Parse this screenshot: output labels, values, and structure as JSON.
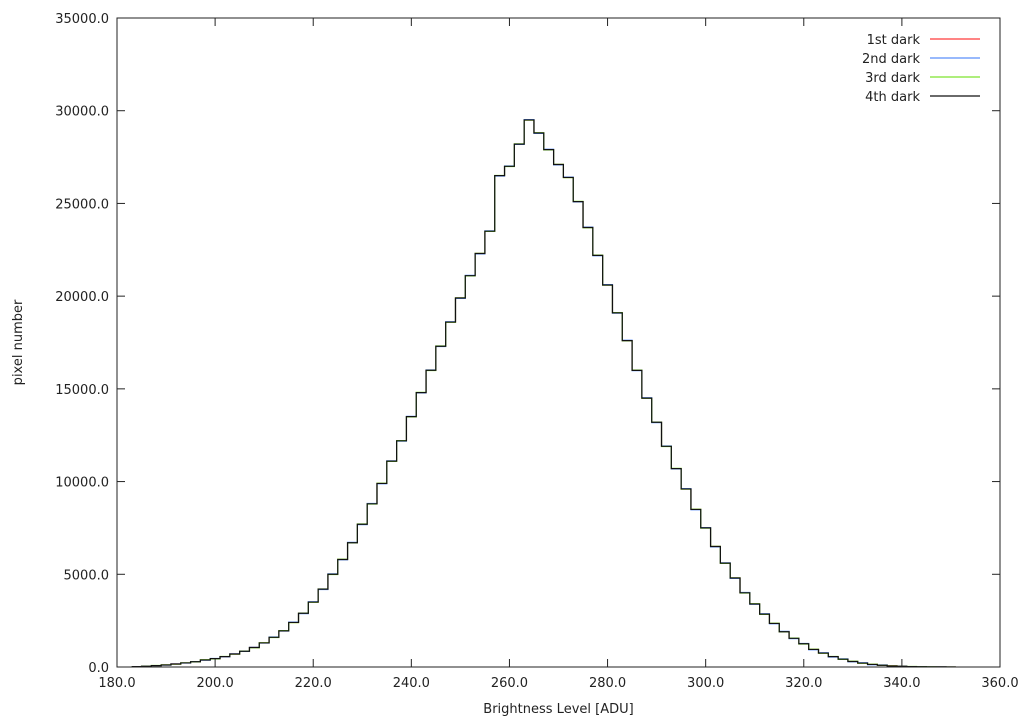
{
  "chart_data": {
    "type": "line",
    "style": "step",
    "title": "",
    "xlabel": "Brightness Level [ADU]",
    "ylabel": "pixel number",
    "xlim": [
      180,
      360
    ],
    "ylim": [
      0,
      35000
    ],
    "x_ticks": [
      {
        "v": 180,
        "label": "180.0"
      },
      {
        "v": 200,
        "label": "200.0"
      },
      {
        "v": 220,
        "label": "220.0"
      },
      {
        "v": 240,
        "label": "240.0"
      },
      {
        "v": 260,
        "label": "260.0"
      },
      {
        "v": 280,
        "label": "280.0"
      },
      {
        "v": 300,
        "label": "300.0"
      },
      {
        "v": 320,
        "label": "320.0"
      },
      {
        "v": 340,
        "label": "340.0"
      },
      {
        "v": 360,
        "label": "360.0"
      }
    ],
    "y_ticks": [
      {
        "v": 0,
        "label": "0.0"
      },
      {
        "v": 5000,
        "label": "5000.0"
      },
      {
        "v": 10000,
        "label": "10000.0"
      },
      {
        "v": 15000,
        "label": "15000.0"
      },
      {
        "v": 20000,
        "label": "20000.0"
      },
      {
        "v": 25000,
        "label": "25000.0"
      },
      {
        "v": 30000,
        "label": "30000.0"
      },
      {
        "v": 35000,
        "label": "35000.0"
      }
    ],
    "grid": false,
    "legend_position": "top-right",
    "x": [
      184,
      186,
      188,
      190,
      192,
      194,
      196,
      198,
      200,
      202,
      204,
      206,
      208,
      210,
      212,
      214,
      216,
      218,
      220,
      222,
      224,
      226,
      228,
      230,
      232,
      234,
      236,
      238,
      240,
      242,
      244,
      246,
      248,
      250,
      252,
      254,
      256,
      258,
      260,
      262,
      264,
      266,
      268,
      270,
      272,
      274,
      276,
      278,
      280,
      282,
      284,
      286,
      288,
      290,
      292,
      294,
      296,
      298,
      300,
      302,
      304,
      306,
      308,
      310,
      312,
      314,
      316,
      318,
      320,
      322,
      324,
      326,
      328,
      330,
      332,
      334,
      336,
      338,
      340,
      342,
      344,
      346,
      348,
      350
    ],
    "series": [
      {
        "name": "1st dark",
        "color": "#ff3b3b",
        "values": [
          20,
          40,
          70,
          110,
          160,
          220,
          280,
          380,
          450,
          560,
          700,
          850,
          1050,
          1300,
          1600,
          1950,
          2400,
          2900,
          3500,
          4200,
          5000,
          5800,
          6700,
          7700,
          8800,
          9900,
          11100,
          12200,
          13500,
          14800,
          16000,
          17300,
          18600,
          19900,
          21100,
          22300,
          23500,
          26500,
          27000,
          28200,
          29500,
          28800,
          27900,
          27100,
          26400,
          25100,
          23700,
          22200,
          20600,
          19100,
          17600,
          16000,
          14500,
          13200,
          11900,
          10700,
          9600,
          8500,
          7500,
          6500,
          5600,
          4800,
          4000,
          3400,
          2850,
          2350,
          1900,
          1550,
          1250,
          950,
          750,
          560,
          420,
          300,
          210,
          140,
          95,
          60,
          40,
          25,
          15,
          10,
          5,
          3
        ]
      },
      {
        "name": "2nd dark",
        "color": "#5b8ff9",
        "values": [
          20,
          45,
          75,
          105,
          165,
          215,
          290,
          370,
          460,
          550,
          710,
          840,
          1060,
          1290,
          1620,
          1940,
          2420,
          2880,
          3520,
          4180,
          5020,
          5780,
          6720,
          7680,
          8820,
          9880,
          11120,
          12180,
          13520,
          14780,
          16020,
          17280,
          18620,
          19880,
          21120,
          22280,
          23520,
          26480,
          27020,
          28180,
          29520,
          28780,
          27920,
          27080,
          26420,
          25080,
          23720,
          22180,
          20620,
          19080,
          17620,
          15980,
          14520,
          13180,
          11920,
          10680,
          9620,
          8480,
          7520,
          6480,
          5620,
          4780,
          4020,
          3380,
          2870,
          2330,
          1920,
          1530,
          1270,
          930,
          770,
          540,
          440,
          280,
          230,
          120,
          110,
          50,
          45,
          20,
          18,
          8,
          6,
          2
        ]
      },
      {
        "name": "3rd dark",
        "color": "#7ee32d",
        "values": [
          25,
          40,
          80,
          115,
          155,
          225,
          275,
          390,
          440,
          570,
          690,
          860,
          1040,
          1310,
          1590,
          1960,
          2390,
          2910,
          3490,
          4210,
          4990,
          5810,
          6690,
          7710,
          8790,
          9910,
          11090,
          12210,
          13490,
          14810,
          15990,
          17310,
          18590,
          19910,
          21090,
          22310,
          23490,
          26510,
          26990,
          28210,
          29490,
          28810,
          27890,
          27110,
          26390,
          25110,
          23690,
          22210,
          20590,
          19110,
          17590,
          16010,
          14490,
          13210,
          11890,
          10710,
          9590,
          8510,
          7490,
          6510,
          5590,
          4810,
          3990,
          3410,
          2840,
          2360,
          1890,
          1560,
          1240,
          960,
          740,
          570,
          410,
          310,
          200,
          150,
          90,
          65,
          35,
          28,
          12,
          11,
          4,
          3
        ]
      },
      {
        "name": "4th dark",
        "color": "#111111",
        "values": [
          22,
          42,
          72,
          108,
          162,
          218,
          282,
          378,
          452,
          558,
          702,
          848,
          1052,
          1298,
          1602,
          1948,
          2402,
          2898,
          3502,
          4198,
          5002,
          5798,
          6702,
          7698,
          8802,
          9898,
          11102,
          12198,
          13502,
          14798,
          16002,
          17298,
          18602,
          19898,
          21102,
          22298,
          23502,
          26498,
          27002,
          28198,
          29502,
          28798,
          27902,
          27098,
          26402,
          25098,
          23702,
          22198,
          20602,
          19098,
          17602,
          15998,
          14502,
          13198,
          11902,
          10698,
          9602,
          8498,
          7502,
          6498,
          5602,
          4798,
          4002,
          3398,
          2852,
          2348,
          1902,
          1548,
          1252,
          948,
          752,
          558,
          422,
          298,
          212,
          138,
          96,
          58,
          41,
          24,
          16,
          9,
          5,
          2
        ]
      }
    ]
  }
}
